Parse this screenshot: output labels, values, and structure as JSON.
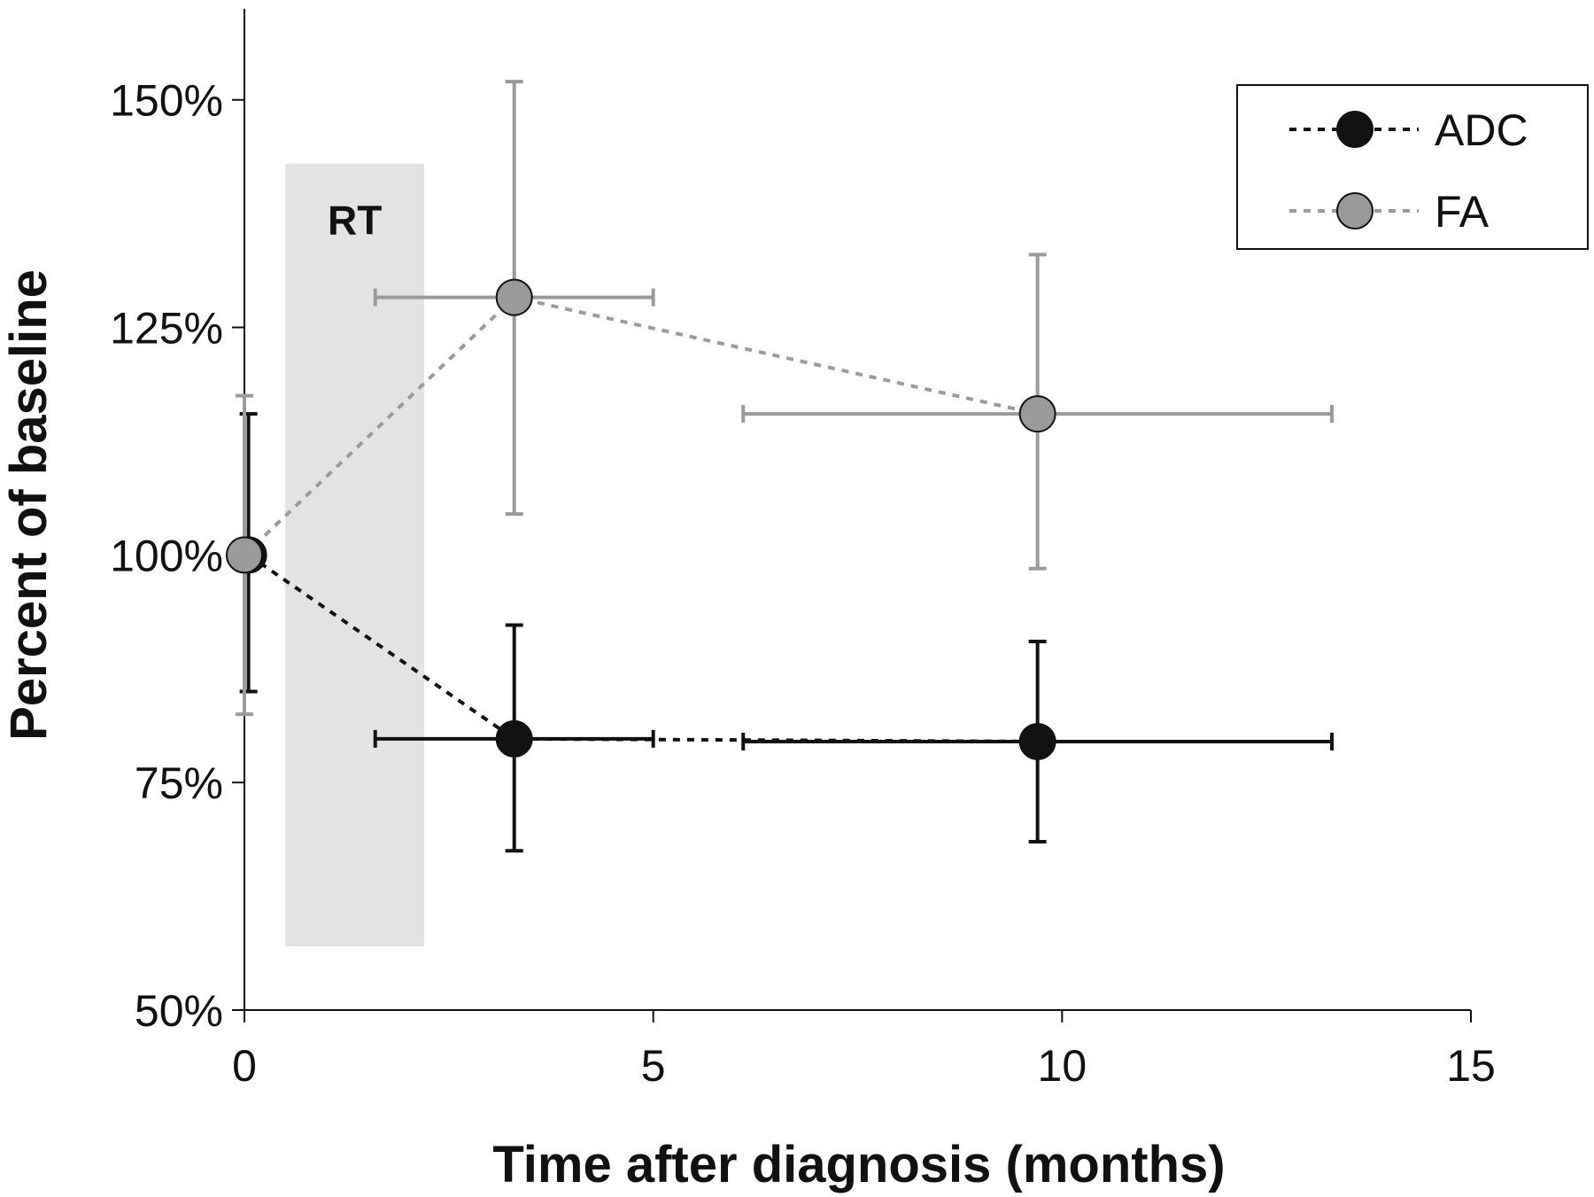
{
  "chart_data": {
    "type": "scatter",
    "xlabel": "Time after diagnosis (months)",
    "ylabel": "Percent of baseline",
    "xlim": [
      0,
      15
    ],
    "ylim": [
      50,
      160
    ],
    "xticks": [
      0,
      5,
      10,
      15
    ],
    "xtick_labels": [
      "0",
      "5",
      "10",
      "15"
    ],
    "yticks": [
      50,
      75,
      100,
      125,
      150
    ],
    "ytick_labels": [
      "50%",
      "75%",
      "100%",
      "125%",
      "150%"
    ],
    "grid": false,
    "legend_position": "top-right",
    "shaded_region": {
      "label": "RT",
      "x": [
        0.5,
        2.2
      ],
      "y": [
        57,
        143
      ],
      "color": "#e3e3e3"
    },
    "series": [
      {
        "name": "ADC",
        "color": "#111111",
        "line_style": "dotted",
        "points": [
          {
            "x": 0.05,
            "y": 100,
            "y_err": [
              85,
              115.5
            ],
            "x_err": null
          },
          {
            "x": 3.3,
            "y": 79.8,
            "y_err": [
              67.5,
              92.3
            ],
            "x_err": [
              1.6,
              5.0
            ]
          },
          {
            "x": 9.7,
            "y": 79.5,
            "y_err": [
              68.5,
              90.5
            ],
            "x_err": [
              6.1,
              13.3
            ]
          }
        ]
      },
      {
        "name": "FA",
        "color": "#9a9a9a",
        "line_style": "dotted",
        "points": [
          {
            "x": 0.0,
            "y": 100,
            "y_err": [
              82.5,
              117.5
            ],
            "x_err": null
          },
          {
            "x": 3.3,
            "y": 128.3,
            "y_err": [
              104.5,
              152
            ],
            "x_err": [
              1.6,
              5.0
            ]
          },
          {
            "x": 9.7,
            "y": 115.5,
            "y_err": [
              98.5,
              133
            ],
            "x_err": [
              6.1,
              13.3
            ]
          }
        ]
      }
    ]
  }
}
